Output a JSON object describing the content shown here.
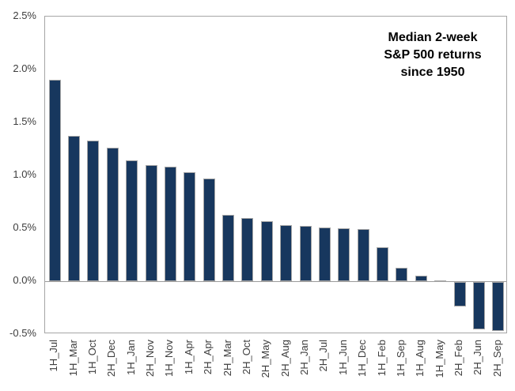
{
  "chart_data": {
    "type": "bar",
    "title": "Median 2-week\nS&P 500 returns\nsince 1950",
    "categories": [
      "1H_Jul",
      "1H_Mar",
      "1H_Oct",
      "2H_Dec",
      "1H_Jan",
      "2H_Nov",
      "1H_Nov",
      "1H_Apr",
      "2H_Apr",
      "2H_Mar",
      "2H_Oct",
      "2H_May",
      "2H_Aug",
      "2H_Jan",
      "2H_Jul",
      "1H_Jun",
      "1H_Dec",
      "1H_Feb",
      "1H_Sep",
      "1H_Aug",
      "1H_May",
      "2H_Feb",
      "2H_Jun",
      "2H_Sep"
    ],
    "values": [
      1.9,
      1.37,
      1.33,
      1.26,
      1.14,
      1.1,
      1.08,
      1.03,
      0.97,
      0.63,
      0.6,
      0.57,
      0.53,
      0.52,
      0.51,
      0.5,
      0.49,
      0.32,
      0.13,
      0.05,
      0.0,
      -0.23,
      -0.45,
      -0.46
    ],
    "unit": "%",
    "xlabel": "",
    "ylabel": "",
    "ylim": [
      -0.5,
      2.5
    ],
    "ytick_step": 0.5,
    "yticks": [
      "2.5%",
      "2.0%",
      "1.5%",
      "1.0%",
      "0.5%",
      "0.0%",
      "-0.5%"
    ],
    "grid": false,
    "legend_position": "none",
    "colors": {
      "bar_fill": "#17375e",
      "bar_border": "#a6a6a6",
      "plot_border": "#a6a6a6",
      "zero_line": "#9b9b9b",
      "axis_text": "#3d3d3d",
      "title_text": "#000000",
      "background": "#ffffff"
    }
  }
}
